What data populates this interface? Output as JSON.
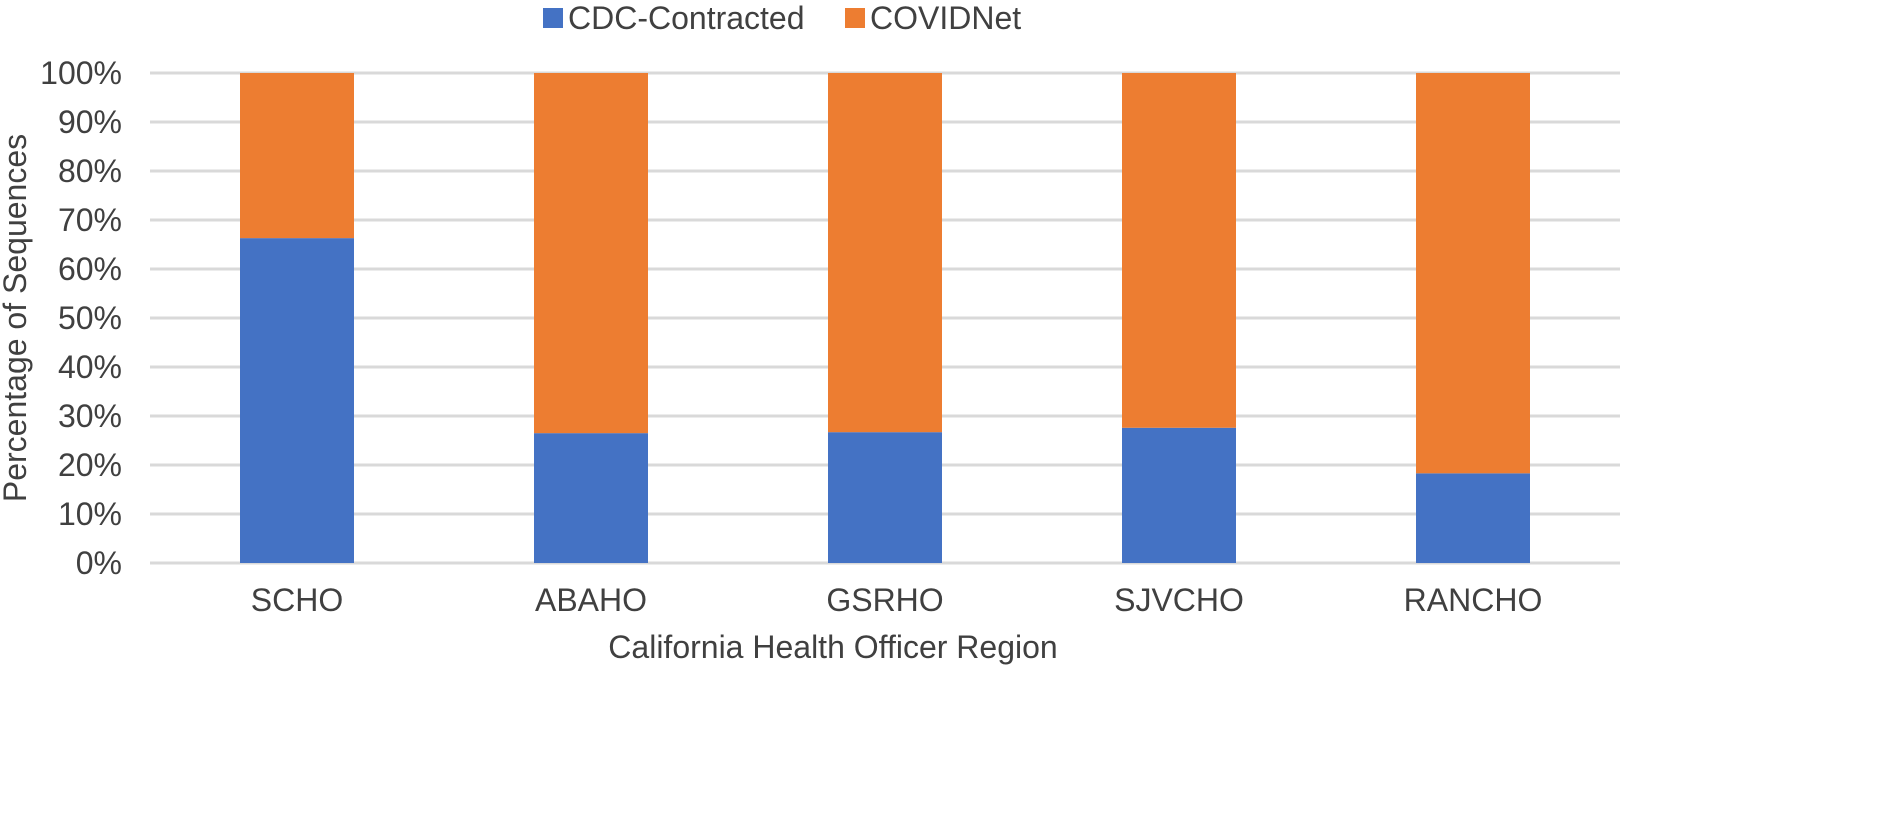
{
  "chart_data": {
    "type": "bar",
    "stacked": true,
    "title": "",
    "xlabel": "California Health Officer Region",
    "ylabel": "Percentage of Sequences",
    "categories": [
      "SCHO",
      "ABAHO",
      "GSRHO",
      "SJVCHO",
      "RANCHO"
    ],
    "series": [
      {
        "name": "CDC-Contracted",
        "color": "#4472C4",
        "values": [
          66.3,
          26.5,
          26.7,
          27.6,
          18.3
        ]
      },
      {
        "name": "COVIDNet",
        "color": "#ED7D31",
        "values": [
          33.7,
          73.5,
          73.3,
          72.4,
          81.7
        ]
      }
    ],
    "ylim": [
      0,
      100
    ],
    "yticks": [
      0,
      10,
      20,
      30,
      40,
      50,
      60,
      70,
      80,
      90,
      100
    ],
    "ytick_labels": [
      "0%",
      "10%",
      "20%",
      "30%",
      "40%",
      "50%",
      "60%",
      "70%",
      "80%",
      "90%",
      "100%"
    ],
    "grid": true,
    "legend_position": "top-center"
  }
}
